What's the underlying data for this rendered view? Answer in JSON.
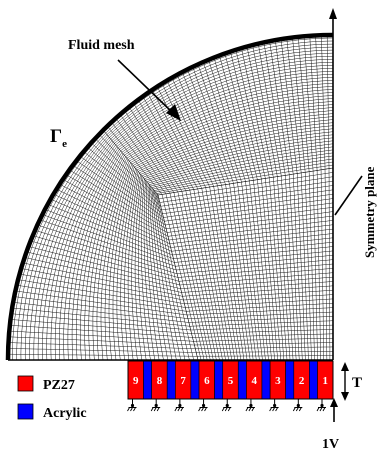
{
  "labels": {
    "fluid_mesh": "Fluid mesh",
    "gamma": "Γ",
    "gamma_sub": "e",
    "symmetry_plane": "Symmetry  plane",
    "thickness": "T",
    "voltage": "1V"
  },
  "legend": [
    {
      "label": "PZ27",
      "color": "#ff0000"
    },
    {
      "label": "Acrylic",
      "color": "#0000ff"
    }
  ],
  "stack_numbers": [
    "9",
    "8",
    "7",
    "6",
    "5",
    "4",
    "3",
    "2",
    "1"
  ],
  "colors": {
    "piezo": "#ff0000",
    "acrylic": "#0000ff",
    "mesh": "#000000",
    "background": "#ffffff"
  },
  "icons": [
    "electrode-ground-icon",
    "arrow-icon"
  ]
}
